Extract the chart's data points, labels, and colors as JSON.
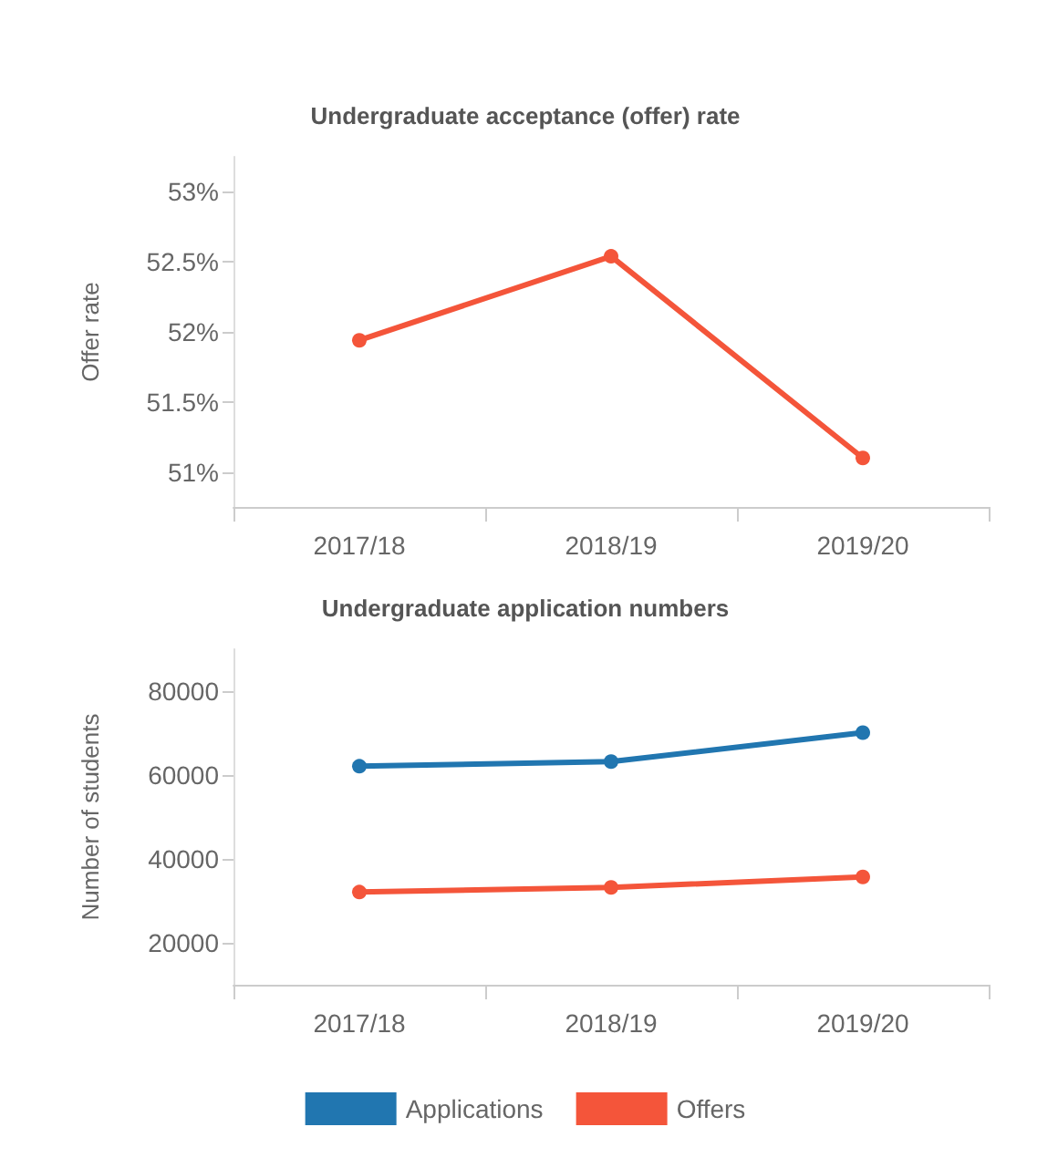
{
  "chart_data": [
    {
      "type": "line",
      "title": "Undergraduate acceptance (offer) rate",
      "ylabel": "Offer rate",
      "categories": [
        "2017/18",
        "2018/19",
        "2019/20"
      ],
      "series": [
        {
          "color": "#f4553a",
          "values": [
            51.94,
            52.54,
            51.1
          ]
        }
      ],
      "ylim": [
        50.75,
        53.25
      ],
      "yticks": [
        {
          "value": 51,
          "label": "51%"
        },
        {
          "value": 51.5,
          "label": "51.5%"
        },
        {
          "value": 52,
          "label": "52%"
        },
        {
          "value": 52.5,
          "label": "52.5%"
        },
        {
          "value": 53,
          "label": "53%"
        }
      ],
      "grid": false,
      "legend": false,
      "marker": "circle",
      "line_style": "solid"
    },
    {
      "type": "line",
      "title": "Undergraduate application numbers",
      "ylabel": "Number of students",
      "categories": [
        "2017/18",
        "2018/19",
        "2019/20"
      ],
      "series": [
        {
          "name": "Applications",
          "color": "#2176b0",
          "values": [
            62100,
            63200,
            70100
          ]
        },
        {
          "name": "Offers",
          "color": "#f4553a",
          "values": [
            32100,
            33200,
            35700
          ]
        }
      ],
      "ylim": [
        10000,
        90000
      ],
      "yticks": [
        20000,
        40000,
        60000,
        80000
      ],
      "grid": false,
      "legend": "bottom",
      "marker": "circle",
      "line_style": "solid"
    }
  ]
}
